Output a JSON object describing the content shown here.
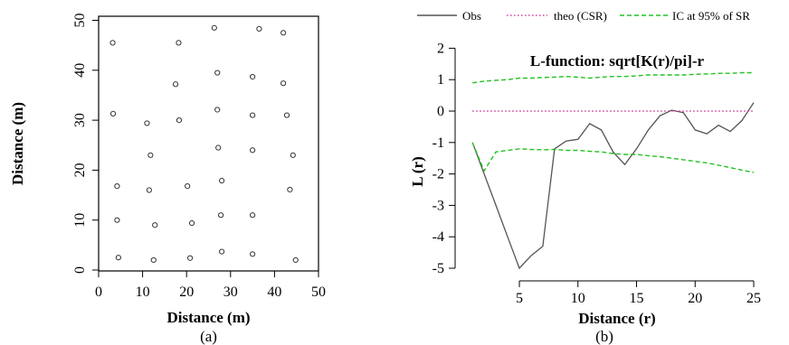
{
  "chart_data": [
    {
      "type": "scatter",
      "panel_label": "(a)",
      "title": "",
      "xlabel": "Distance (m)",
      "ylabel": "Distance (m)",
      "xlim": [
        0,
        50
      ],
      "ylim": [
        0,
        50
      ],
      "xticks": [
        0,
        10,
        20,
        30,
        40,
        50
      ],
      "yticks": [
        0,
        10,
        20,
        30,
        40,
        50
      ],
      "marker": "open-circle",
      "points": [
        {
          "x": 3.2,
          "y": 45.5
        },
        {
          "x": 18.2,
          "y": 45.5
        },
        {
          "x": 26.3,
          "y": 48.5
        },
        {
          "x": 36.5,
          "y": 48.3
        },
        {
          "x": 42.0,
          "y": 47.5
        },
        {
          "x": 17.5,
          "y": 37.2
        },
        {
          "x": 27.0,
          "y": 39.5
        },
        {
          "x": 35.0,
          "y": 38.7
        },
        {
          "x": 42.0,
          "y": 37.4
        },
        {
          "x": 3.3,
          "y": 31.3
        },
        {
          "x": 11.0,
          "y": 29.4
        },
        {
          "x": 18.3,
          "y": 30.0
        },
        {
          "x": 27.0,
          "y": 32.1
        },
        {
          "x": 35.0,
          "y": 31.0
        },
        {
          "x": 42.8,
          "y": 31.0
        },
        {
          "x": 11.8,
          "y": 23.0
        },
        {
          "x": 27.2,
          "y": 24.5
        },
        {
          "x": 35.0,
          "y": 24.0
        },
        {
          "x": 44.2,
          "y": 23.0
        },
        {
          "x": 4.2,
          "y": 16.8
        },
        {
          "x": 11.5,
          "y": 16.0
        },
        {
          "x": 20.2,
          "y": 16.8
        },
        {
          "x": 28.0,
          "y": 17.9
        },
        {
          "x": 43.5,
          "y": 16.1
        },
        {
          "x": 4.2,
          "y": 10.0
        },
        {
          "x": 12.8,
          "y": 9.0
        },
        {
          "x": 21.2,
          "y": 9.4
        },
        {
          "x": 27.8,
          "y": 11.0
        },
        {
          "x": 35.0,
          "y": 11.0
        },
        {
          "x": 4.5,
          "y": 2.5
        },
        {
          "x": 12.5,
          "y": 2.0
        },
        {
          "x": 20.8,
          "y": 2.4
        },
        {
          "x": 28.0,
          "y": 3.7
        },
        {
          "x": 35.0,
          "y": 3.2
        },
        {
          "x": 44.8,
          "y": 2.0
        }
      ]
    },
    {
      "type": "line",
      "panel_label": "(b)",
      "title": "L-function: sqrt[K(r)/pi]-r",
      "xlabel": "Distance (r)",
      "ylabel": "L (r)",
      "xlim": [
        0,
        26
      ],
      "ylim": [
        -5.2,
        2.2
      ],
      "xticks": [
        5,
        10,
        15,
        20,
        25
      ],
      "yticks": [
        -5,
        -4,
        -3,
        -2,
        -1,
        0,
        1,
        2
      ],
      "legend_position": "top",
      "series": [
        {
          "name": "Obs",
          "color": "#555555",
          "style": "solid",
          "x": [
            1,
            2,
            3,
            4,
            5,
            6,
            7,
            8,
            9,
            10,
            11,
            12,
            13,
            14,
            15,
            16,
            17,
            18,
            19,
            20,
            21,
            22,
            23,
            24,
            25
          ],
          "y": [
            -1.0,
            -2.0,
            -3.0,
            -4.0,
            -5.0,
            -4.6,
            -4.3,
            -1.2,
            -0.95,
            -0.9,
            -0.4,
            -0.6,
            -1.3,
            -1.7,
            -1.2,
            -0.6,
            -0.15,
            0.03,
            -0.05,
            -0.6,
            -0.72,
            -0.45,
            -0.65,
            -0.3,
            0.27
          ]
        },
        {
          "name": "theo (CSR)",
          "color": "#d0409a",
          "style": "dotted",
          "x": [
            1,
            25
          ],
          "y": [
            0,
            0
          ]
        },
        {
          "name": "IC at 95% of SR",
          "color": "#22c322",
          "style": "dashed",
          "x": [
            1,
            2,
            3,
            4,
            5,
            6,
            7,
            8,
            9,
            10,
            11,
            12,
            13,
            14,
            15,
            16,
            17,
            18,
            19,
            20,
            21,
            22,
            23,
            24,
            25
          ],
          "y": [
            0.9,
            0.95,
            0.98,
            1.0,
            1.05,
            1.05,
            1.07,
            1.08,
            1.1,
            1.08,
            1.05,
            1.08,
            1.1,
            1.1,
            1.12,
            1.15,
            1.15,
            1.15,
            1.15,
            1.17,
            1.18,
            1.2,
            1.2,
            1.22,
            1.22
          ]
        },
        {
          "name": "",
          "color": "#22c322",
          "style": "dashed",
          "x": [
            1,
            2,
            3,
            4,
            5,
            6,
            7,
            8,
            9,
            10,
            11,
            12,
            13,
            14,
            15,
            16,
            17,
            18,
            19,
            20,
            21,
            22,
            23,
            24,
            25
          ],
          "y": [
            -1.0,
            -1.9,
            -1.3,
            -1.25,
            -1.2,
            -1.22,
            -1.23,
            -1.22,
            -1.25,
            -1.25,
            -1.28,
            -1.3,
            -1.35,
            -1.38,
            -1.38,
            -1.42,
            -1.45,
            -1.5,
            -1.55,
            -1.6,
            -1.65,
            -1.72,
            -1.8,
            -1.88,
            -1.95
          ]
        }
      ]
    }
  ]
}
